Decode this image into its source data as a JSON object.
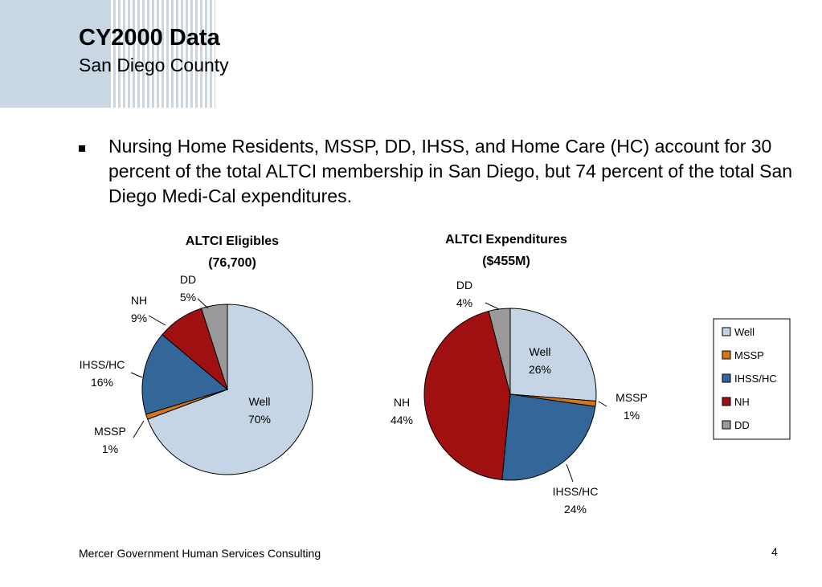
{
  "slide": {
    "title": "CY2000 Data",
    "subtitle": "San Diego County",
    "bullet": "Nursing Home Residents, MSSP, DD, IHSS, and Home Care (HC) account for 30 percent of the total ALTCI membership in San Diego, but 74 percent of the total San Diego Medi-Cal expenditures.",
    "footer": "Mercer Government Human Services Consulting",
    "page_number": "4"
  },
  "legend": [
    "Well",
    "MSSP",
    "IHSS/HC",
    "NH",
    "DD"
  ],
  "colors": {
    "Well": "#c5d5e6",
    "MSSP": "#d4761c",
    "IHSS/HC": "#336699",
    "NH": "#a01010",
    "DD": "#999999"
  },
  "chart_data": [
    {
      "type": "pie",
      "title": "ALTCI Eligibles",
      "subtitle": "(76,700)",
      "categories": [
        "Well",
        "MSSP",
        "IHSS/HC",
        "NH",
        "DD"
      ],
      "values": [
        70,
        1,
        16,
        9,
        5
      ],
      "labels": [
        "70%",
        "1%",
        "16%",
        "9%",
        "5%"
      ]
    },
    {
      "type": "pie",
      "title": "ALTCI Expenditures",
      "subtitle": "($455M)",
      "categories": [
        "Well",
        "MSSP",
        "IHSS/HC",
        "NH",
        "DD"
      ],
      "values": [
        26,
        1,
        24,
        44,
        4
      ],
      "labels": [
        "26%",
        "1%",
        "24%",
        "44%",
        "4%"
      ]
    }
  ]
}
